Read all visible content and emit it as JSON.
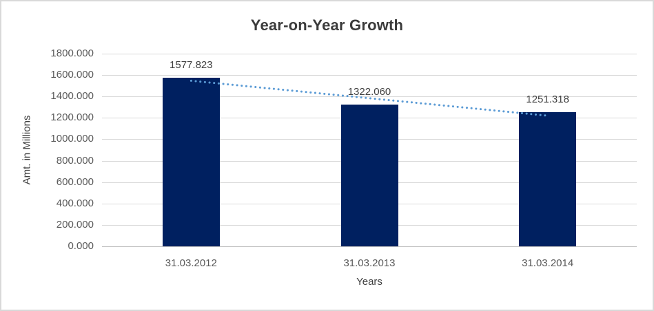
{
  "chart_data": {
    "type": "bar",
    "title": "Year-on-Year Growth",
    "xlabel": "Years",
    "ylabel": "Amt. in Millions",
    "categories": [
      "31.03.2012",
      "31.03.2013",
      "31.03.2014"
    ],
    "values": [
      1577.823,
      1322.06,
      1251.318
    ],
    "value_labels": [
      "1577.823",
      "1322.060",
      "1251.318"
    ],
    "ylim": [
      0,
      1800
    ],
    "y_tick_step": 200,
    "y_tick_labels": [
      "1800.000",
      "1600.000",
      "1400.000",
      "1200.000",
      "1000.000",
      "800.000",
      "600.000",
      "400.000",
      "200.000",
      "0.000"
    ],
    "grid": true,
    "legend_position": "none",
    "colors": {
      "bar": "#002060",
      "trendline": "#5b9bd5",
      "gridline": "#d9d9d9",
      "axis_line": "#bfbfbf",
      "title_text": "#3b3b3b",
      "tick_text": "#595959",
      "data_label_text": "#404040",
      "background": "#ffffff",
      "border": "#d9d9d9"
    },
    "trendline": {
      "type": "linear",
      "style": "dotted",
      "fitted_endpoint_values": [
        1546.99,
        1220.48
      ]
    }
  }
}
